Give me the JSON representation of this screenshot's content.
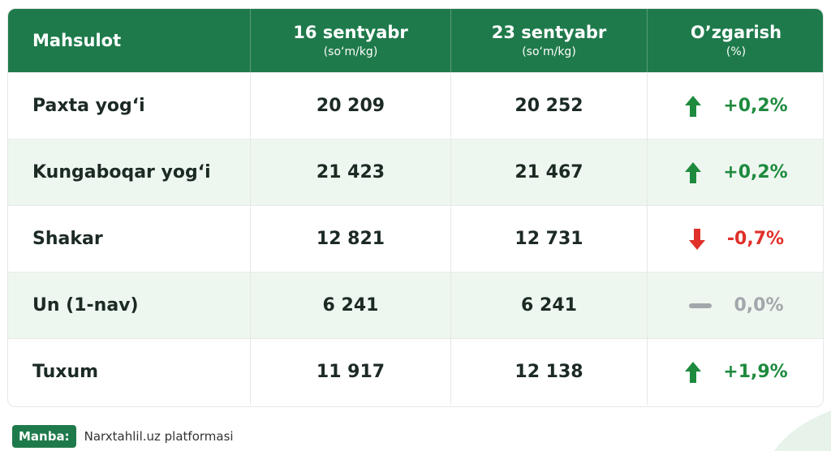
{
  "table": {
    "header": [
      "Mahsulot",
      "16 sentyabr",
      "23 sentyabr",
      "O’zgarish"
    ],
    "subheader": [
      "(so‘m/kg)",
      "(so‘m/kg)",
      "(%)"
    ],
    "rows": [
      [
        "Paxta yog‘i",
        "20 209",
        "20 252",
        "+0,2%"
      ],
      [
        "Kungaboqar yog‘i",
        "21 423",
        "21 467",
        "+0,2%"
      ],
      [
        "Shakar",
        "12 821",
        "12 731",
        "-0,7%"
      ],
      [
        "Un (1-nav)",
        "6 241",
        "6 241",
        "0,0%"
      ],
      [
        "Tuxum",
        "11 917",
        "12 138",
        "+1,9%"
      ]
    ]
  },
  "footer": {
    "label": "Manba:",
    "text": "Narxtahlil.uz platformasi"
  }
}
